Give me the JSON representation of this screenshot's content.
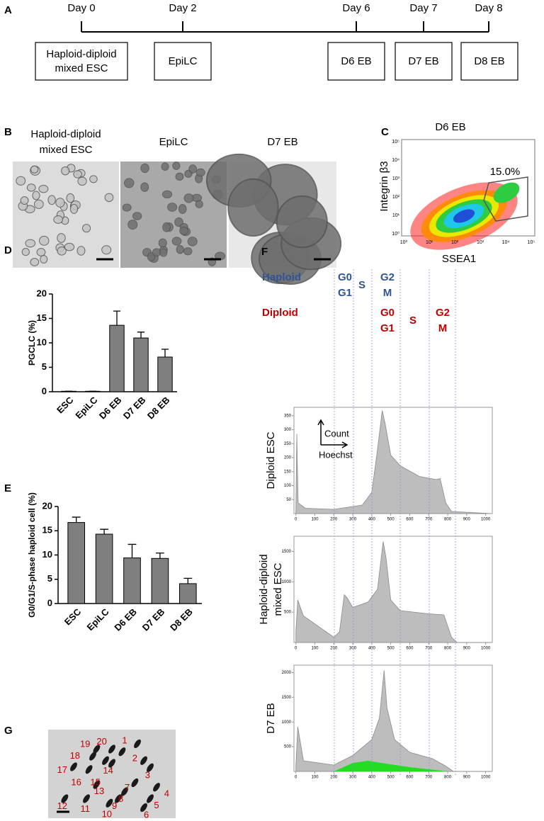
{
  "panel_a": {
    "letter": "A",
    "days": [
      "Day 0",
      "Day 2",
      "Day 6",
      "Day 7",
      "Day 8"
    ],
    "boxes": [
      [
        "Haploid-diploid",
        "mixed ESC"
      ],
      [
        "EpiLC"
      ],
      [
        "D6 EB"
      ],
      [
        "D7 EB"
      ],
      [
        "D8 EB"
      ]
    ]
  },
  "panel_b": {
    "letter": "B",
    "labels": [
      [
        "Haploid-diploid",
        "mixed ESC"
      ],
      [
        "EpiLC"
      ],
      [
        "D7 EB"
      ]
    ]
  },
  "panel_c": {
    "letter": "C",
    "title": "D6 EB",
    "xlabel": "SSEA1",
    "ylabel": "Integrin β3",
    "gate_label": "15.0%",
    "xtick_labels": [
      "10⁰",
      "10¹",
      "10²",
      "10³",
      "10⁴",
      "10⁵"
    ],
    "ytick_labels": [
      "10⁰",
      "10¹",
      "10²",
      "10³",
      "10⁴",
      "10⁵"
    ]
  },
  "chart_data": [
    {
      "type": "bar",
      "panel_label": "D",
      "ylabel": "PGCLC (%)",
      "categories": [
        "ESC",
        "EpiLC",
        "D6 EB",
        "D7 EB",
        "D8 EB"
      ],
      "values": [
        0.1,
        0.1,
        13.6,
        11.0,
        7.1
      ],
      "errors": [
        0,
        0,
        2.9,
        1.2,
        1.6
      ],
      "color": "#7f7f7f",
      "ylim": [
        0,
        20
      ],
      "yticks": [
        0,
        5,
        10,
        15,
        20
      ]
    },
    {
      "type": "bar",
      "panel_label": "E",
      "ylabel": "G0/G1/S-phase haploid cell (%)",
      "categories": [
        "ESC",
        "EpiLC",
        "D6 EB",
        "D7 EB",
        "D8 EB"
      ],
      "values": [
        16.7,
        14.3,
        9.4,
        9.3,
        4.1
      ],
      "errors": [
        1.1,
        1.0,
        2.8,
        1.1,
        1.1
      ],
      "color": "#7f7f7f",
      "ylim": [
        0,
        20
      ],
      "yticks": [
        0,
        5,
        10,
        15,
        20
      ]
    }
  ],
  "panel_f": {
    "letter": "F",
    "haploid": {
      "label": "Haploid",
      "phases": [
        [
          "G0",
          "G1"
        ],
        [
          "S"
        ],
        [
          "G2",
          "M"
        ]
      ]
    },
    "diploid": {
      "label": "Diploid",
      "phases": [
        [
          "G0",
          "G1"
        ],
        [
          "S"
        ],
        [
          "G2",
          "M"
        ]
      ]
    },
    "inset": {
      "y": "Count",
      "x": "Hoechst"
    },
    "xlim": [
      -10,
      1035
    ],
    "xticks": [
      0,
      100,
      200,
      300,
      400,
      500,
      600,
      700,
      800,
      900,
      1000
    ],
    "histograms": [
      {
        "ylabel": [
          "Diploid ESC"
        ],
        "ylim": [
          0,
          380
        ],
        "yticks": [
          50,
          100,
          150,
          200,
          250,
          300,
          350
        ]
      },
      {
        "ylabel": [
          "Haploid-diploid",
          "mixed ESC"
        ],
        "ylim": [
          0,
          1750
        ],
        "yticks": [
          500,
          1000,
          1500
        ]
      },
      {
        "ylabel": [
          "D7 EB"
        ],
        "ylim": [
          0,
          2150
        ],
        "yticks": [
          500,
          1000,
          1500,
          2000
        ]
      }
    ]
  },
  "panel_g": {
    "letter": "G",
    "chromosomes": [
      "1",
      "2",
      "3",
      "4",
      "5",
      "6",
      "7",
      "8",
      "9",
      "10",
      "11",
      "12",
      "13",
      "14",
      "15",
      "16",
      "17",
      "18",
      "19",
      "20"
    ]
  }
}
